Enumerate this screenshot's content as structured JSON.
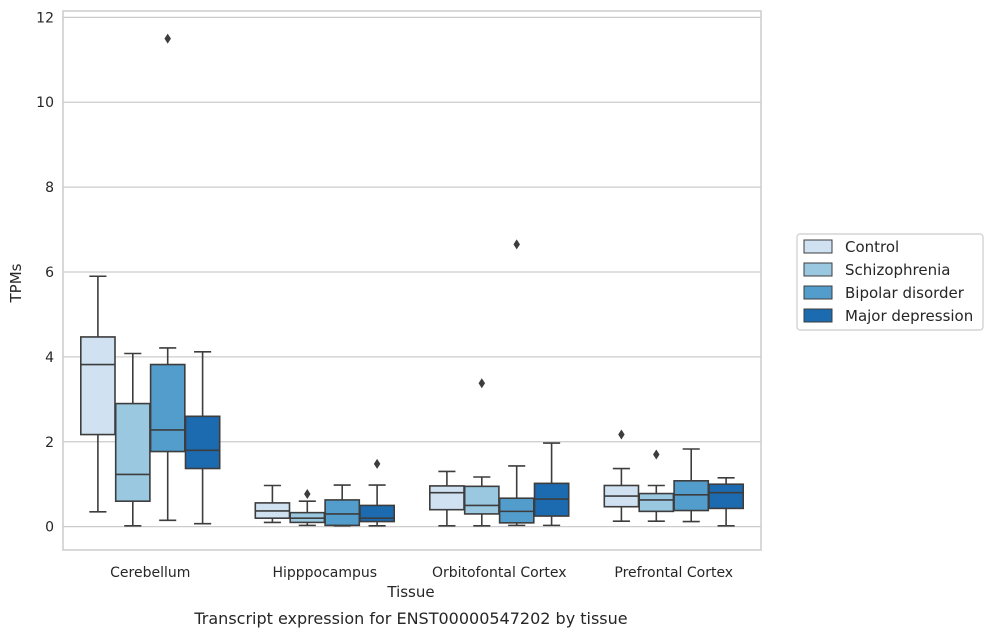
{
  "chart_data": {
    "type": "box",
    "caption": "Transcript expression for ENST00000547202 by tissue",
    "xlabel": "Tissue",
    "ylabel": "TPMs",
    "ylim": [
      -0.55,
      12.15
    ],
    "yticks": [
      0,
      2,
      4,
      6,
      8,
      10,
      12
    ],
    "grid": "horizontal",
    "legend_position": "right",
    "categories": [
      "Cerebellum",
      "Hipppocampus",
      "Orbitofontal Cortex",
      "Prefrontal Cortex"
    ],
    "series": [
      {
        "name": "Control",
        "color": "#d0e1f2",
        "boxes": [
          {
            "whislo": 0.35,
            "q1": 2.17,
            "med": 3.82,
            "q3": 4.47,
            "whishi": 5.9,
            "fliers": []
          },
          {
            "whislo": 0.1,
            "q1": 0.2,
            "med": 0.37,
            "q3": 0.56,
            "whishi": 0.97,
            "fliers": []
          },
          {
            "whislo": 0.02,
            "q1": 0.4,
            "med": 0.8,
            "q3": 0.96,
            "whishi": 1.3,
            "fliers": []
          },
          {
            "whislo": 0.13,
            "q1": 0.47,
            "med": 0.72,
            "q3": 0.97,
            "whishi": 1.37,
            "fliers": [
              2.17
            ]
          }
        ]
      },
      {
        "name": "Schizophrenia",
        "color": "#9ac8e0",
        "boxes": [
          {
            "whislo": 0.02,
            "q1": 0.6,
            "med": 1.23,
            "q3": 2.9,
            "whishi": 4.08,
            "fliers": []
          },
          {
            "whislo": 0.03,
            "q1": 0.1,
            "med": 0.2,
            "q3": 0.33,
            "whishi": 0.6,
            "fliers": [
              0.77
            ]
          },
          {
            "whislo": 0.02,
            "q1": 0.3,
            "med": 0.5,
            "q3": 0.95,
            "whishi": 1.17,
            "fliers": [
              3.38
            ]
          },
          {
            "whislo": 0.13,
            "q1": 0.36,
            "med": 0.63,
            "q3": 0.78,
            "whishi": 0.97,
            "fliers": [
              1.7
            ]
          }
        ]
      },
      {
        "name": "Bipolar disorder",
        "color": "#529dcc",
        "boxes": [
          {
            "whislo": 0.15,
            "q1": 1.77,
            "med": 2.28,
            "q3": 3.82,
            "whishi": 4.21,
            "fliers": [
              11.5
            ]
          },
          {
            "whislo": 0.02,
            "q1": 0.03,
            "med": 0.3,
            "q3": 0.63,
            "whishi": 0.98,
            "fliers": []
          },
          {
            "whislo": 0.03,
            "q1": 0.09,
            "med": 0.36,
            "q3": 0.67,
            "whishi": 1.43,
            "fliers": [
              6.65
            ]
          },
          {
            "whislo": 0.12,
            "q1": 0.38,
            "med": 0.75,
            "q3": 1.08,
            "whishi": 1.83,
            "fliers": []
          }
        ]
      },
      {
        "name": "Major depression",
        "color": "#1c6aaf",
        "boxes": [
          {
            "whislo": 0.07,
            "q1": 1.37,
            "med": 1.8,
            "q3": 2.6,
            "whishi": 4.12,
            "fliers": []
          },
          {
            "whislo": 0.02,
            "q1": 0.12,
            "med": 0.2,
            "q3": 0.5,
            "whishi": 0.98,
            "fliers": [
              1.48
            ]
          },
          {
            "whislo": 0.03,
            "q1": 0.25,
            "med": 0.65,
            "q3": 1.02,
            "whishi": 1.97,
            "fliers": []
          },
          {
            "whislo": 0.02,
            "q1": 0.43,
            "med": 0.8,
            "q3": 1.0,
            "whishi": 1.15,
            "fliers": []
          }
        ]
      }
    ],
    "colors": {
      "grid": "#cccccc",
      "frame": "#cccccc",
      "line": "#3d3d3d",
      "text": "#262626"
    }
  }
}
